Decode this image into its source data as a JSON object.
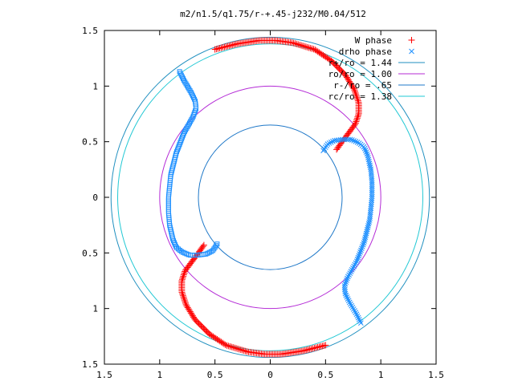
{
  "chart_data": {
    "type": "scatter",
    "title": "m2/n1.5/q1.75/r-+.45-j232/M0.04/512",
    "xlabel": "",
    "ylabel": "",
    "xlim": [
      -1.5,
      1.5
    ],
    "ylim": [
      -1.5,
      1.5
    ],
    "x_ticks": [
      -1.5,
      -1,
      -0.5,
      0,
      0.5,
      1,
      1.5
    ],
    "y_ticks": [
      -1.5,
      -1,
      -0.5,
      0,
      0.5,
      1,
      1.5
    ],
    "x_tick_labels": [
      "1.5",
      "1",
      "0.5",
      "0",
      "0.5",
      "1",
      "1.5"
    ],
    "y_tick_labels": [
      "1.5",
      "1",
      "0.5",
      "0",
      "0.5",
      "1",
      "1.5"
    ],
    "grid": false,
    "legend_position": "top-right",
    "series": [
      {
        "name": "W phase",
        "kind": "points",
        "marker": "plus",
        "color": "#ff0000",
        "arm_control_points": [
          [
            -0.5,
            1.33
          ],
          [
            -0.3,
            1.38
          ],
          [
            -0.1,
            1.41
          ],
          [
            0.05,
            1.41
          ],
          [
            0.2,
            1.39
          ],
          [
            0.4,
            1.33
          ],
          [
            0.55,
            1.23
          ],
          [
            0.68,
            1.1
          ],
          [
            0.76,
            0.97
          ],
          [
            0.8,
            0.85
          ],
          [
            0.8,
            0.75
          ],
          [
            0.77,
            0.66
          ],
          [
            0.71,
            0.58
          ],
          [
            0.65,
            0.5
          ],
          [
            0.6,
            0.43
          ]
        ]
      },
      {
        "name": "drho phase",
        "kind": "points",
        "marker": "cross",
        "color": "#1e90ff",
        "arm_control_points": [
          [
            0.48,
            0.42
          ],
          [
            0.52,
            0.48
          ],
          [
            0.58,
            0.51
          ],
          [
            0.66,
            0.52
          ],
          [
            0.73,
            0.52
          ],
          [
            0.8,
            0.49
          ],
          [
            0.85,
            0.45
          ],
          [
            0.88,
            0.38
          ],
          [
            0.91,
            0.25
          ],
          [
            0.92,
            0.14
          ],
          [
            0.92,
            0.0
          ],
          [
            0.9,
            -0.2
          ],
          [
            0.85,
            -0.4
          ],
          [
            0.78,
            -0.58
          ],
          [
            0.7,
            -0.72
          ],
          [
            0.67,
            -0.8
          ],
          [
            0.68,
            -0.87
          ],
          [
            0.72,
            -0.95
          ],
          [
            0.78,
            -1.05
          ],
          [
            0.82,
            -1.13
          ]
        ]
      },
      {
        "name": "r+/ro = 1.44",
        "kind": "circle",
        "radius": 1.44,
        "color": "#1f8fbf"
      },
      {
        "name": "ro/ro = 1.00",
        "kind": "circle",
        "radius": 1.0,
        "color": "#b42bd6"
      },
      {
        "name": "r-/ro = .65",
        "kind": "circle",
        "radius": 0.65,
        "color": "#1f78c8"
      },
      {
        "name": "rc/ro = 1.38",
        "kind": "circle",
        "radius": 1.38,
        "color": "#22c8d4"
      }
    ]
  }
}
